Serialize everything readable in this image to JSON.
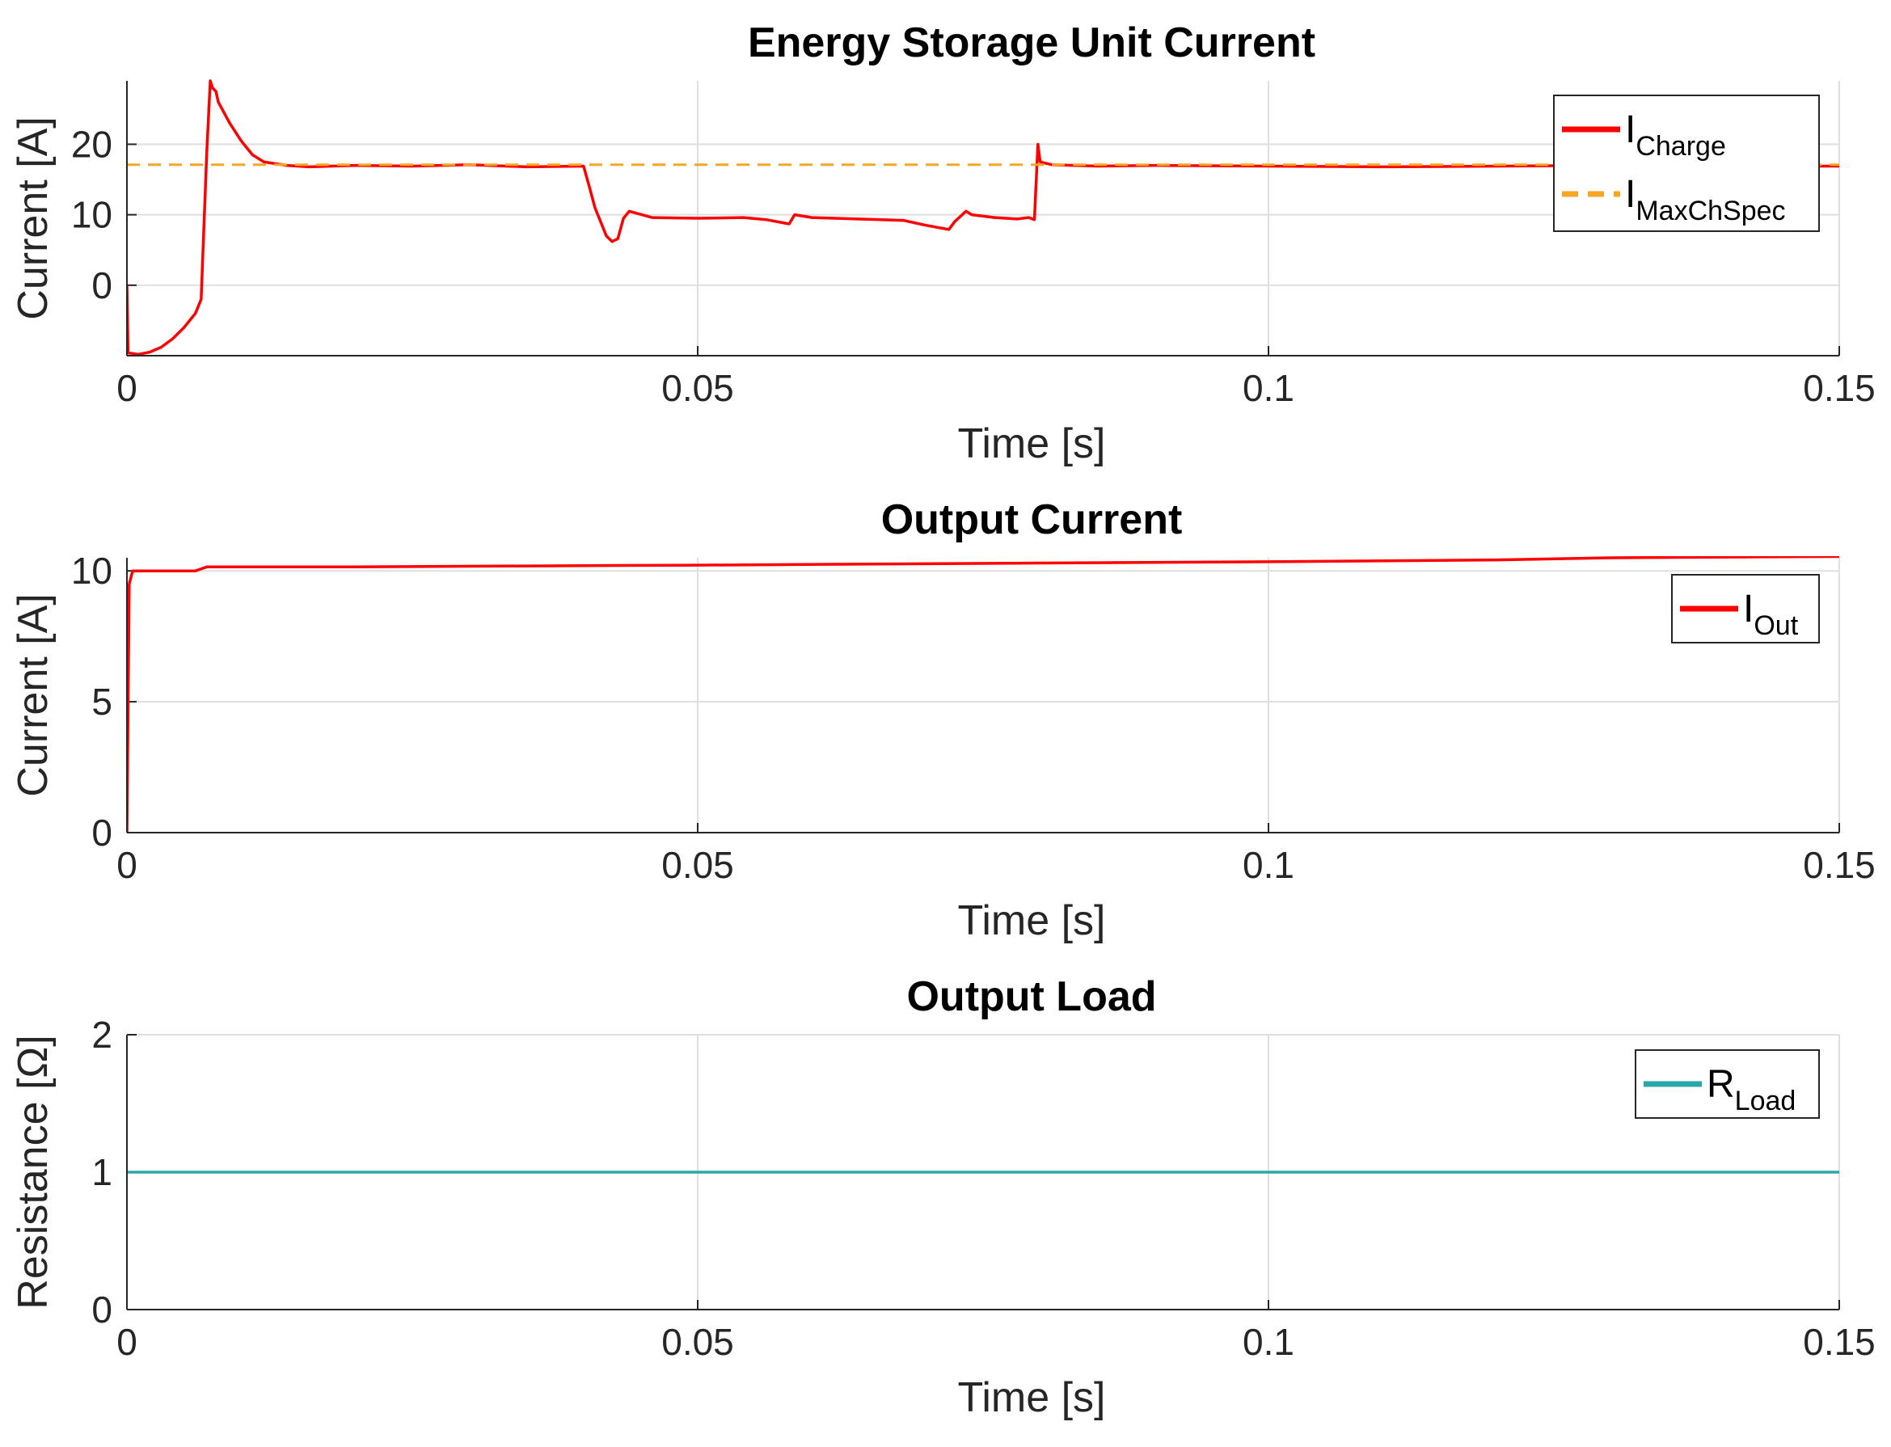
{
  "chart_data": [
    {
      "type": "line",
      "title": "Energy Storage Unit Current",
      "xlabel": "Time [s]",
      "ylabel": "Current [A]",
      "xlim": [
        0,
        0.15
      ],
      "ylim": [
        -10,
        29
      ],
      "xticks": [
        "0",
        "0.05",
        "0.1",
        "0.15"
      ],
      "yticks": [
        "0",
        "10",
        "20"
      ],
      "grid": true,
      "legend_position": "top-right",
      "series": [
        {
          "name": "I",
          "name_sub": "Charge",
          "color": "#ff0000",
          "style": "solid",
          "x": [
            0,
            0.0001,
            0.001,
            0.002,
            0.003,
            0.004,
            0.005,
            0.006,
            0.0065,
            0.007,
            0.0073,
            0.0075,
            0.0078,
            0.008,
            0.009,
            0.01,
            0.011,
            0.012,
            0.014,
            0.016,
            0.02,
            0.025,
            0.03,
            0.035,
            0.04,
            0.0405,
            0.041,
            0.042,
            0.0425,
            0.043,
            0.0435,
            0.044,
            0.046,
            0.05,
            0.054,
            0.056,
            0.058,
            0.0585,
            0.06,
            0.064,
            0.068,
            0.07,
            0.072,
            0.0725,
            0.0735,
            0.074,
            0.076,
            0.078,
            0.079,
            0.0795,
            0.0798,
            0.08,
            0.081,
            0.085,
            0.09,
            0.1,
            0.11,
            0.12,
            0.13,
            0.14,
            0.15
          ],
          "y": [
            0,
            -9.6,
            -9.8,
            -9.5,
            -8.8,
            -7.6,
            -6.0,
            -4.0,
            -2.0,
            19,
            29,
            28,
            27.5,
            26,
            23,
            20.5,
            18.5,
            17.5,
            17.0,
            16.8,
            17.0,
            16.9,
            17.1,
            16.8,
            16.9,
            14,
            11,
            7,
            6.2,
            6.6,
            9.5,
            10.5,
            9.6,
            9.5,
            9.6,
            9.3,
            8.7,
            10.0,
            9.6,
            9.4,
            9.2,
            8.5,
            7.9,
            9.0,
            10.5,
            10.0,
            9.6,
            9.4,
            9.6,
            9.3,
            20.0,
            17.5,
            17.1,
            16.9,
            17.0,
            16.9,
            16.8,
            16.9,
            17.0,
            16.9,
            16.9
          ]
        },
        {
          "name": "I",
          "name_sub": "MaxChSpec",
          "color": "#f5a623",
          "style": "dashed",
          "x": [
            0,
            0.15
          ],
          "y": [
            17.1,
            17.1
          ]
        }
      ]
    },
    {
      "type": "line",
      "title": "Output Current",
      "xlabel": "Time [s]",
      "ylabel": "Current [A]",
      "xlim": [
        0,
        0.15
      ],
      "ylim": [
        0,
        10.5
      ],
      "xticks": [
        "0",
        "0.05",
        "0.1",
        "0.15"
      ],
      "yticks": [
        "0",
        "5",
        "10"
      ],
      "grid": true,
      "legend_position": "top-right",
      "series": [
        {
          "name": "I",
          "name_sub": "Out",
          "color": "#ff0000",
          "style": "solid",
          "x": [
            0,
            0.0002,
            0.0005,
            0.006,
            0.007,
            0.02,
            0.04,
            0.05,
            0.08,
            0.1,
            0.12,
            0.13,
            0.15
          ],
          "y": [
            0,
            9.5,
            10.0,
            10.0,
            10.15,
            10.15,
            10.2,
            10.22,
            10.3,
            10.35,
            10.42,
            10.5,
            10.55
          ]
        }
      ]
    },
    {
      "type": "line",
      "title": "Output Load",
      "xlabel": "Time [s]",
      "ylabel": "Resistance [Ω]",
      "xlim": [
        0,
        0.15
      ],
      "ylim": [
        0,
        2
      ],
      "xticks": [
        "0",
        "0.05",
        "0.1",
        "0.15"
      ],
      "yticks": [
        "0",
        "1",
        "2"
      ],
      "grid": true,
      "legend_position": "top-right",
      "series": [
        {
          "name": "R",
          "name_sub": "Load",
          "color": "#2aa7a7",
          "style": "solid",
          "x": [
            0,
            0.15
          ],
          "y": [
            1,
            1
          ]
        }
      ]
    }
  ]
}
